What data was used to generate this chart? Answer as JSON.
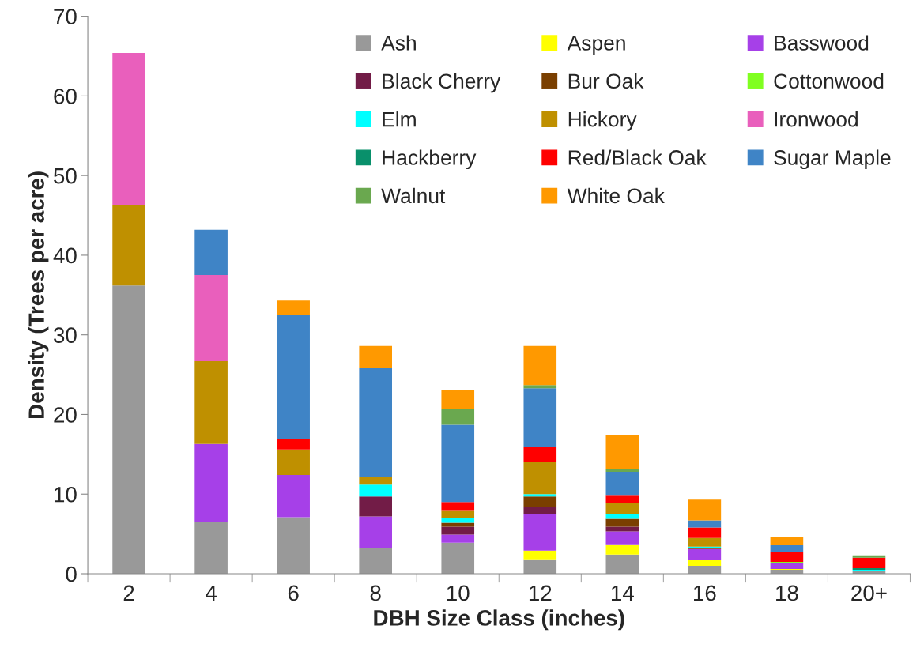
{
  "chart_data": {
    "type": "bar",
    "stacked": true,
    "xlabel": "DBH Size Class (inches)",
    "ylabel": "Density (Trees per acre)",
    "categories": [
      "2",
      "4",
      "6",
      "8",
      "10",
      "12",
      "14",
      "16",
      "18",
      "20+"
    ],
    "ylim": [
      0,
      70
    ],
    "yticks": [
      0,
      10,
      20,
      30,
      40,
      50,
      60,
      70
    ],
    "grid": false,
    "legend": "top right",
    "series": [
      {
        "name": "Ash",
        "color": "#999999",
        "values": [
          36.2,
          6.5,
          7.1,
          3.2,
          3.9,
          1.8,
          2.4,
          1.0,
          0.5,
          0.3
        ]
      },
      {
        "name": "Aspen",
        "color": "#ffff00",
        "values": [
          0,
          0,
          0,
          0,
          0,
          1.1,
          1.3,
          0.7,
          0.1,
          0
        ]
      },
      {
        "name": "Basswood",
        "color": "#a640e8",
        "values": [
          0,
          9.8,
          5.3,
          4.0,
          1.0,
          4.6,
          1.6,
          1.4,
          0.7,
          0
        ]
      },
      {
        "name": "Black Cherry",
        "color": "#721c47",
        "values": [
          0,
          0,
          0,
          2.5,
          1.0,
          0.9,
          0.6,
          0,
          0,
          0
        ]
      },
      {
        "name": "Bur Oak",
        "color": "#7a3f00",
        "values": [
          0,
          0,
          0,
          0,
          0.5,
          1.3,
          1.0,
          0.1,
          0,
          0
        ]
      },
      {
        "name": "Cottonwood",
        "color": "#80ff20",
        "values": [
          0,
          0,
          0,
          0,
          0,
          0,
          0,
          0,
          0.2,
          0
        ]
      },
      {
        "name": "Elm",
        "color": "#00ffff",
        "values": [
          0,
          0,
          0,
          1.5,
          0.6,
          0.3,
          0.6,
          0.2,
          0,
          0.2
        ]
      },
      {
        "name": "Hickory",
        "color": "#bf9000",
        "values": [
          10.1,
          10.4,
          3.2,
          0.9,
          1.0,
          4.1,
          1.4,
          1.1,
          0,
          0
        ]
      },
      {
        "name": "Ironwood",
        "color": "#e95fbc",
        "values": [
          19.1,
          10.8,
          0,
          0,
          0,
          0,
          0,
          0,
          0,
          0
        ]
      },
      {
        "name": "Hackberry",
        "color": "#09906b",
        "values": [
          0,
          0,
          0,
          0,
          0,
          0,
          0,
          0,
          0,
          0.2
        ]
      },
      {
        "name": "Red/Black Oak",
        "color": "#ff0000",
        "values": [
          0,
          0,
          1.3,
          0,
          1.0,
          1.8,
          1.0,
          1.3,
          1.2,
          1.3
        ]
      },
      {
        "name": "Sugar Maple",
        "color": "#3f84c6",
        "values": [
          0,
          5.7,
          15.6,
          13.7,
          9.7,
          7.4,
          2.9,
          0.9,
          0.9,
          0
        ]
      },
      {
        "name": "Walnut",
        "color": "#6aa84f",
        "values": [
          0,
          0,
          0,
          0,
          2.0,
          0.4,
          0.3,
          0,
          0,
          0.3
        ]
      },
      {
        "name": "White Oak",
        "color": "#ff9900",
        "values": [
          0,
          0,
          1.8,
          2.8,
          2.4,
          4.9,
          4.3,
          2.6,
          1.0,
          0
        ]
      }
    ]
  }
}
